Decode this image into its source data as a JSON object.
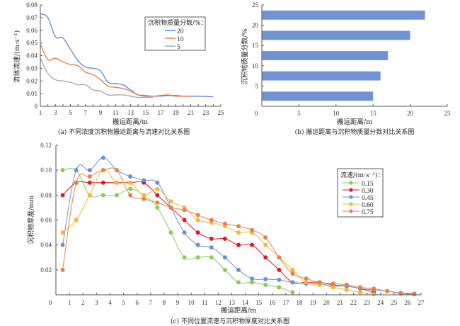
{
  "chart_data": [
    {
      "id": "a",
      "type": "line",
      "caption": "(a) 不同浓度沉积物搬运距离与流速对比关系图",
      "xlabel": "搬运距离/m",
      "ylabel": "流体流速/(m·s⁻¹)",
      "xlim": [
        1,
        25
      ],
      "ylim": [
        0,
        0.08
      ],
      "xticks": [
        1,
        3,
        5,
        7,
        9,
        11,
        13,
        15,
        17,
        19,
        21,
        23,
        25
      ],
      "yticks": [
        0,
        0.01,
        0.02,
        0.03,
        0.04,
        0.05,
        0.06,
        0.07,
        0.08
      ],
      "ytick_labels": [
        "0",
        "0.01",
        "0.02",
        "0.03",
        "0.04",
        "0.05",
        "0.06",
        "0.07",
        "0.08"
      ],
      "grid": false,
      "legend_title": "沉积物质量分数/%：",
      "legend_position": "top-right",
      "series": [
        {
          "name": "20",
          "color": "#5b85d0",
          "x": [
            1,
            2,
            3,
            4,
            5,
            6,
            7,
            8,
            9,
            10,
            11,
            12,
            13,
            14,
            15,
            16,
            17,
            18,
            19,
            20,
            21,
            22,
            23,
            24
          ],
          "y": [
            0.073,
            0.07,
            0.055,
            0.054,
            0.045,
            0.036,
            0.031,
            0.03,
            0.028,
            0.019,
            0.018,
            0.017,
            0.013,
            0.009,
            0.008,
            0.008,
            0.008,
            0.0085,
            0.0085,
            0.008,
            0.008,
            0.008,
            0.0078,
            0.0075
          ]
        },
        {
          "name": "10",
          "color": "#e3773a",
          "x": [
            1,
            2,
            3,
            4,
            5,
            6,
            7,
            8,
            9,
            10,
            11,
            12,
            13,
            14,
            15,
            16,
            17,
            18,
            19,
            20,
            21
          ],
          "y": [
            0.049,
            0.037,
            0.038,
            0.035,
            0.033,
            0.032,
            0.027,
            0.025,
            0.021,
            0.016,
            0.015,
            0.014,
            0.012,
            0.009,
            0.0085,
            0.008,
            0.0085,
            0.009,
            0.008,
            0.008,
            0.008
          ]
        },
        {
          "name": "5",
          "color": "#a6a6a6",
          "x": [
            1,
            2,
            3,
            4,
            5,
            6,
            7,
            8,
            9,
            10,
            11,
            12,
            13,
            14,
            15,
            16
          ],
          "y": [
            0.038,
            0.026,
            0.021,
            0.02,
            0.019,
            0.017,
            0.017,
            0.013,
            0.012,
            0.009,
            0.009,
            0.009,
            0.008,
            0.007,
            0.007,
            0.007
          ]
        }
      ]
    },
    {
      "id": "b",
      "type": "bar",
      "orientation": "horizontal",
      "caption": "(b) 搬运距离与沉积物质量分数对比关系图",
      "xlabel": "搬运距离/m",
      "ylabel": "沉积物质量分数/%",
      "xlim": [
        0,
        25
      ],
      "ylim": [
        0,
        25
      ],
      "xticks": [
        0,
        5,
        10,
        15,
        20,
        25
      ],
      "yticks": [
        5,
        10,
        15,
        20,
        25
      ],
      "ytick_zero_label": "0",
      "grid": false,
      "color": "#7094d3",
      "categories": [
        2.5,
        7.5,
        12.5,
        17.5,
        22.5
      ],
      "values": [
        15,
        16,
        17,
        20,
        22
      ]
    },
    {
      "id": "c",
      "type": "line",
      "caption": "(c) 不同位置流速与沉积物厚度对比关系图",
      "xlabel": "搬运距离/m",
      "ylabel": "沉积物厚度/mm",
      "xlim": [
        0,
        27
      ],
      "ylim": [
        0,
        0.12
      ],
      "xticks": [
        0,
        1,
        2,
        3,
        4,
        5,
        6,
        7,
        8,
        9,
        10,
        11,
        12,
        13,
        14,
        15,
        16,
        17,
        18,
        19,
        20,
        21,
        22,
        23,
        24,
        25,
        26,
        27
      ],
      "yticks": [
        0.02,
        0.04,
        0.06,
        0.08,
        0.1,
        0.12
      ],
      "ytick_labels": [
        "0.02",
        "0.04",
        "0.06",
        "0.08",
        "0.10",
        "0.12"
      ],
      "grid": false,
      "markers": true,
      "legend_title": "流速/(m·s⁻¹)：",
      "legend_position": "right",
      "series": [
        {
          "name": "0.15",
          "color": "#8dc95a",
          "x": [
            0.5,
            1.5,
            2.5,
            3.5,
            4.5,
            5.5,
            6.5,
            7.5,
            8.5,
            9.5,
            10.5,
            11.5,
            12.5,
            13.5,
            14.5,
            15.5,
            16.5,
            17.5
          ],
          "y": [
            0.1,
            0.1,
            0.08,
            0.08,
            0.08,
            0.085,
            0.08,
            0.07,
            0.05,
            0.03,
            0.03,
            0.03,
            0.02,
            0.01,
            0.01,
            0.008,
            0.006,
            0.002
          ]
        },
        {
          "name": "0.30",
          "color": "#dc1c22",
          "x": [
            0.5,
            1.5,
            2.5,
            3.5,
            4.5,
            5.5,
            6.5,
            7.5,
            8.5,
            9.5,
            10.5,
            11.5,
            12.5,
            13.5,
            14.5,
            15.5,
            16.5,
            17.5,
            18.5,
            19.5,
            20.5,
            21.5,
            22.5,
            23.5
          ],
          "y": [
            0.08,
            0.09,
            0.09,
            0.09,
            0.09,
            0.09,
            0.09,
            0.08,
            0.07,
            0.06,
            0.05,
            0.045,
            0.045,
            0.04,
            0.04,
            0.03,
            0.02,
            0.01,
            0.01,
            0.01,
            0.008,
            0.007,
            0.005,
            0.002
          ]
        },
        {
          "name": "0.45",
          "color": "#6a8fd6",
          "x": [
            0.5,
            1.5,
            2.5,
            3.5,
            4.5,
            5.5,
            6.5,
            7.5,
            8.5,
            9.5,
            10.5,
            11.5,
            12.5,
            13.5,
            14.5,
            15.5,
            16.5,
            17.5,
            18.5,
            19.5,
            20.5,
            21.5,
            22.5,
            23.5,
            24.5,
            25.5,
            26.5
          ],
          "y": [
            0.04,
            0.1,
            0.1,
            0.11,
            0.1,
            0.095,
            0.092,
            0.09,
            0.07,
            0.05,
            0.04,
            0.038,
            0.03,
            0.02,
            0.013,
            0.0125,
            0.012,
            0.01,
            0.009,
            0.009,
            0.007,
            0.007,
            0.005,
            0.004,
            0.003,
            0.0015,
            0.001
          ]
        },
        {
          "name": "0.60",
          "color": "#f5b731",
          "x": [
            0.5,
            1.5,
            2.5,
            3.5,
            4.5,
            5.5,
            6.5,
            7.5,
            8.5,
            9.5,
            10.5,
            11.5,
            12.5,
            13.5,
            14.5,
            15.5,
            16.5,
            17.5,
            18.5,
            19.5,
            20.5,
            21.5,
            22.5,
            23.5
          ],
          "y": [
            0.05,
            0.06,
            0.08,
            0.1,
            0.09,
            0.09,
            0.08,
            0.085,
            0.075,
            0.07,
            0.06,
            0.058,
            0.055,
            0.05,
            0.05,
            0.04,
            0.03,
            0.02,
            0.01,
            0.008,
            0.006,
            0.004,
            0.002,
            0.0005
          ]
        },
        {
          "name": "0.75",
          "color": "#e2844a",
          "x": [
            0.5,
            1.5,
            2.5,
            3.5,
            4.5,
            5.5,
            6.5,
            7.5,
            8.5,
            9.5,
            10.5,
            11.5,
            12.5,
            13.5,
            14.5,
            15.5,
            16.5,
            17.5,
            18.5,
            19.5,
            20.5,
            21.5,
            22.5,
            23.5,
            24.5,
            25.5,
            26.5
          ],
          "y": [
            0.02,
            0.09,
            0.095,
            0.1,
            0.1,
            0.08,
            0.077,
            0.074,
            0.07,
            0.068,
            0.064,
            0.06,
            0.057,
            0.055,
            0.052,
            0.046,
            0.03,
            0.017,
            0.013,
            0.01,
            0.009,
            0.008,
            0.006,
            0.005,
            0.003,
            0.001,
            0.0005
          ]
        }
      ]
    }
  ]
}
